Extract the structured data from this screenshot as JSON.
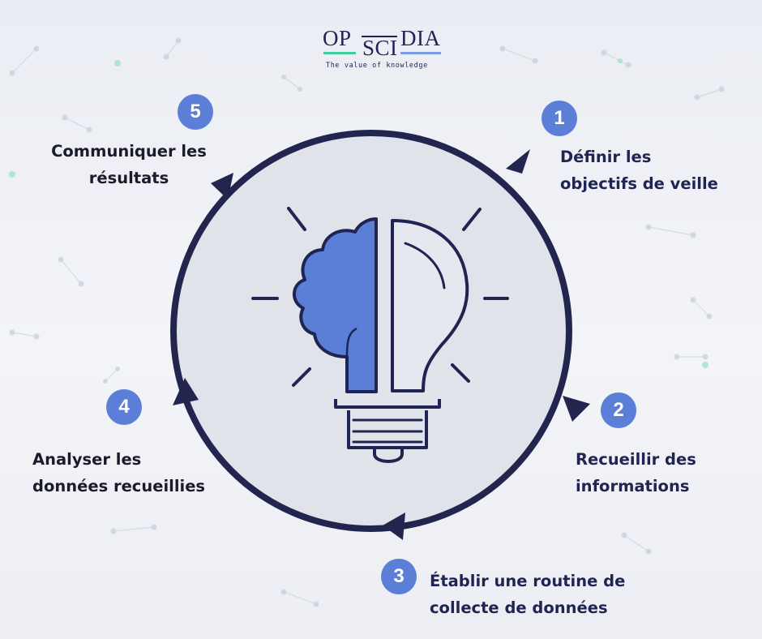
{
  "brand": {
    "name_parts": [
      "OP",
      "SCI",
      "DIA"
    ],
    "tagline": "The value of knowledge",
    "colors": {
      "navy": "#1f2452",
      "teal": "#3ecfa0",
      "blue": "#7d9be0"
    }
  },
  "diagram": {
    "center_icon": "lightbulb-brain-icon",
    "colors": {
      "ring": "#22264f",
      "disc": "#e1e3eb",
      "brain": "#5b7fd6",
      "badge": "#5b7fd6"
    },
    "steps": [
      {
        "number": "1",
        "lines": [
          "Définir les",
          "objectifs de veille"
        ]
      },
      {
        "number": "2",
        "lines": [
          "Recueillir des",
          "informations"
        ]
      },
      {
        "number": "3",
        "lines": [
          "Établir une routine de",
          "collecte de données"
        ]
      },
      {
        "number": "4",
        "lines": [
          "Analyser les",
          "données recueillies"
        ]
      },
      {
        "number": "5",
        "lines": [
          "Communiquer les",
          "résultats"
        ]
      }
    ]
  }
}
